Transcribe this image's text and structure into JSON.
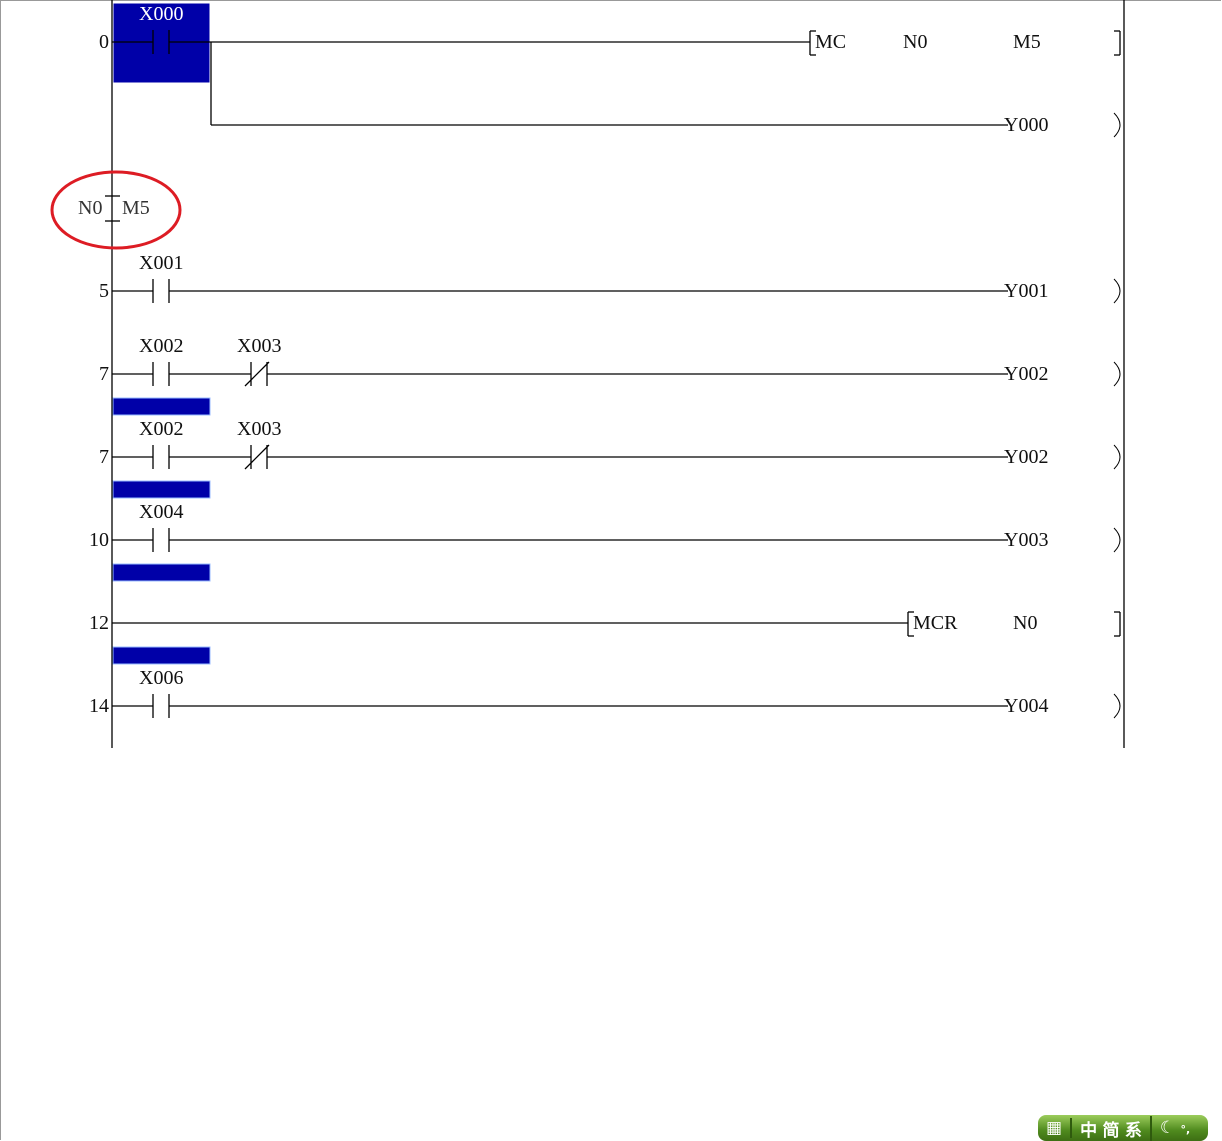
{
  "colors": {
    "selection": "#0000a8",
    "annotation_circle": "#dd1c24",
    "line": "#000000"
  },
  "rungs": [
    {
      "step": "0",
      "selected_contact": true,
      "contacts": [
        {
          "type": "no",
          "label": "X000"
        }
      ],
      "instruction": {
        "kind": "bracket",
        "op": "MC",
        "args": [
          "N0",
          "M5"
        ]
      }
    },
    {
      "step": "",
      "branch": true,
      "instruction": {
        "kind": "coil",
        "op": "Y000"
      }
    },
    {
      "step": "5",
      "contacts": [
        {
          "type": "no",
          "label": "X001"
        }
      ],
      "instruction": {
        "kind": "coil",
        "op": "Y001"
      }
    },
    {
      "step": "7",
      "contacts": [
        {
          "type": "no",
          "label": "X002"
        },
        {
          "type": "nc",
          "label": "X003"
        }
      ],
      "instruction": {
        "kind": "coil",
        "op": "Y002"
      }
    },
    {
      "step": "7",
      "contacts": [
        {
          "type": "no",
          "label": "X002"
        },
        {
          "type": "nc",
          "label": "X003"
        }
      ],
      "instruction": {
        "kind": "coil",
        "op": "Y002"
      }
    },
    {
      "step": "10",
      "contacts": [
        {
          "type": "no",
          "label": "X004"
        }
      ],
      "instruction": {
        "kind": "coil",
        "op": "Y003"
      }
    },
    {
      "step": "12",
      "contacts": [],
      "instruction": {
        "kind": "bracket",
        "op": "MCR",
        "args": [
          "N0"
        ]
      }
    },
    {
      "step": "14",
      "contacts": [
        {
          "type": "no",
          "label": "X006"
        }
      ],
      "instruction": {
        "kind": "coil",
        "op": "Y004"
      }
    }
  ],
  "master_control_marker": {
    "nesting": "N0",
    "device": "M5"
  },
  "ime_bar": {
    "mode": "中",
    "charset": "简",
    "extra": "系",
    "keyboard_icon": "keyboard-icon",
    "moon_icon": "half-width-moon-icon",
    "punct": "°,"
  }
}
